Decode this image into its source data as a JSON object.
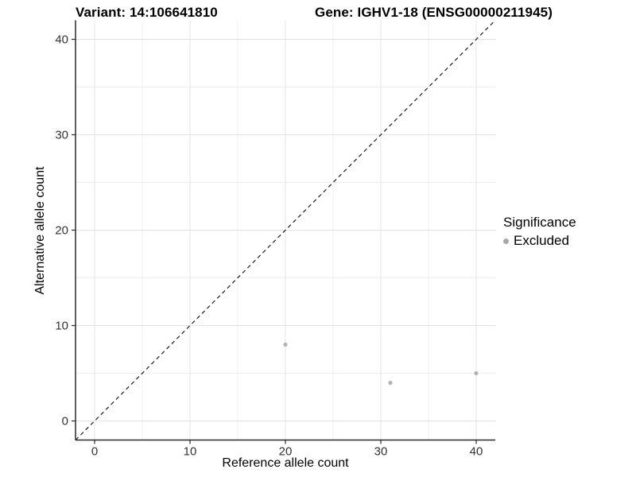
{
  "titles": {
    "left": "Variant: 14:106641810",
    "right": "Gene: IGHV1-18 (ENSG00000211945)"
  },
  "chart_data": {
    "type": "scatter",
    "xlabel": "Reference allele count",
    "ylabel": "Alternative allele count",
    "xlim": [
      -2,
      42
    ],
    "ylim": [
      -2,
      42
    ],
    "x_ticks": [
      0,
      10,
      20,
      30,
      40
    ],
    "y_ticks": [
      0,
      10,
      20,
      30,
      40
    ],
    "x_minor": [
      5,
      15,
      25,
      35
    ],
    "y_minor": [
      5,
      15,
      25,
      35
    ],
    "grid": "on",
    "series": [
      {
        "name": "Excluded",
        "points": [
          {
            "x": 20,
            "y": 8
          },
          {
            "x": 31,
            "y": 4
          },
          {
            "x": 40,
            "y": 5
          }
        ]
      }
    ],
    "reference_line": {
      "style": "dashed",
      "from": [
        -2,
        -2
      ],
      "to": [
        42,
        42
      ]
    },
    "legend": {
      "title": "Significance",
      "position": "right",
      "entries": [
        {
          "label": "Excluded",
          "color": "#aaaaaa"
        }
      ]
    }
  },
  "colors": {
    "point": "#b3b3b3",
    "legend_dot": "#a9a9a9",
    "grid_major": "#e3e3e3",
    "grid_minor": "#efefef",
    "axis_line": "#2a2a2a",
    "tick_label": "#333333",
    "dashed_line": "#1a1a1a"
  }
}
